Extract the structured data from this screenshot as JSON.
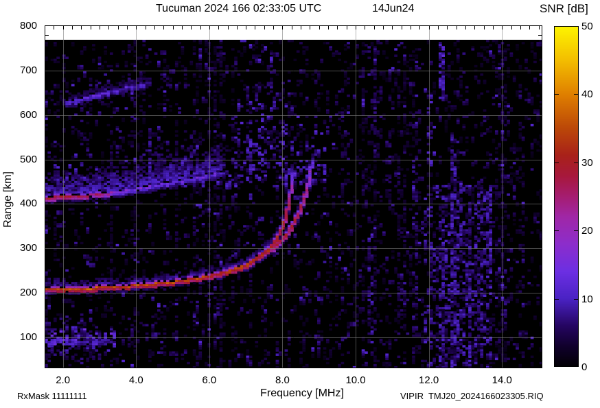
{
  "header": {
    "title": "Tucuman 2024 166 02:33:05 UTC",
    "date": "14Jun24"
  },
  "colorbar": {
    "title": "SNR [dB]",
    "min": 0,
    "max": 50,
    "tick_values": [
      0,
      10,
      20,
      30,
      40,
      50
    ],
    "tick_labels": [
      "0",
      "10",
      "20",
      "30",
      "40",
      "50"
    ]
  },
  "axes": {
    "x": {
      "label": "Frequency [MHz]",
      "values": [
        2,
        4,
        6,
        8,
        10,
        12,
        14
      ],
      "labels": [
        "2.0",
        "4.0",
        "6.0",
        "8.0",
        "10.0",
        "12.0",
        "14.0"
      ],
      "minor_step": 0.25,
      "range": [
        1.5,
        15.1
      ]
    },
    "y": {
      "label": "Range [km]",
      "values": [
        800,
        700,
        600,
        500,
        400,
        300,
        200,
        100
      ],
      "labels": [
        "800",
        "700",
        "600",
        "500",
        "400",
        "300",
        "200",
        "100"
      ],
      "range": [
        30,
        800
      ]
    }
  },
  "footer": {
    "left": "RxMask 11111111",
    "right": "VIPIR  TMJ20_2024166023305.RIQ"
  },
  "chart_data": {
    "type": "heatmap",
    "kind": "ionogram",
    "station": "Tucuman",
    "timestamp": "2024 166 02:33:05 UTC",
    "xlabel": "Frequency [MHz]",
    "ylabel": "Range [km]",
    "zlabel": "SNR [dB]",
    "x_range": [
      1.5,
      15.1
    ],
    "y_range": [
      30,
      800
    ],
    "z_range": [
      0,
      50
    ],
    "grid": {
      "x_major": [
        2,
        4,
        6,
        8,
        10,
        12,
        14
      ],
      "y_major": [
        100,
        200,
        300,
        400,
        500,
        600,
        700
      ]
    },
    "palette_stops": [
      [
        0.0,
        "#020004"
      ],
      [
        0.06,
        "#10002c"
      ],
      [
        0.12,
        "#250561"
      ],
      [
        0.2,
        "#4a22c4"
      ],
      [
        0.28,
        "#6c2fe2"
      ],
      [
        0.36,
        "#8c2dcb"
      ],
      [
        0.44,
        "#a027a6"
      ],
      [
        0.5,
        "#a51d70"
      ],
      [
        0.56,
        "#a7183c"
      ],
      [
        0.62,
        "#a8211a"
      ],
      [
        0.7,
        "#bb4708"
      ],
      [
        0.8,
        "#df7f00"
      ],
      [
        0.9,
        "#f3bd00"
      ],
      [
        1.0,
        "#fdf400"
      ]
    ],
    "traces": [
      {
        "name": "F-layer O-mode first hop",
        "halo_km": 14,
        "halo_db": 11,
        "points": [
          [
            1.5,
            206,
            30
          ],
          [
            2.0,
            207,
            33
          ],
          [
            2.6,
            209,
            33
          ],
          [
            3.2,
            212,
            32
          ],
          [
            3.8,
            215,
            31
          ],
          [
            4.4,
            219,
            32
          ],
          [
            5.0,
            224,
            31
          ],
          [
            5.5,
            230,
            31
          ],
          [
            6.0,
            237,
            31
          ],
          [
            6.5,
            247,
            30
          ],
          [
            7.0,
            261,
            30
          ],
          [
            7.3,
            275,
            29
          ],
          [
            7.6,
            295,
            29
          ],
          [
            7.85,
            320,
            28
          ],
          [
            8.0,
            348,
            27
          ],
          [
            8.1,
            375,
            26
          ],
          [
            8.18,
            405,
            23
          ],
          [
            8.24,
            432,
            18
          ],
          [
            8.28,
            455,
            14
          ],
          [
            8.31,
            472,
            12
          ]
        ]
      },
      {
        "name": "F-layer X-mode first hop",
        "halo_km": 10,
        "halo_db": 9,
        "points": [
          [
            7.35,
            279,
            22
          ],
          [
            7.6,
            291,
            23
          ],
          [
            7.85,
            308,
            25
          ],
          [
            8.1,
            330,
            25
          ],
          [
            8.3,
            355,
            25
          ],
          [
            8.45,
            380,
            24
          ],
          [
            8.57,
            405,
            22
          ],
          [
            8.66,
            430,
            20
          ],
          [
            8.73,
            455,
            16
          ],
          [
            8.78,
            478,
            13
          ],
          [
            8.81,
            495,
            11
          ]
        ]
      },
      {
        "name": "Second hop echo",
        "halo_km": 55,
        "halo_db": 12,
        "points": [
          [
            1.5,
            413,
            26
          ],
          [
            2.0,
            415,
            27
          ],
          [
            2.5,
            417,
            25
          ],
          [
            3.0,
            421,
            22
          ],
          [
            3.4,
            425,
            16
          ],
          [
            3.8,
            430,
            13
          ],
          [
            4.2,
            436,
            12
          ],
          [
            4.7,
            443,
            11
          ],
          [
            5.2,
            450,
            10
          ],
          [
            5.7,
            458,
            10
          ],
          [
            6.1,
            465,
            9
          ],
          [
            6.4,
            471,
            9
          ]
        ]
      },
      {
        "name": "Upper faint echo",
        "halo_km": 8,
        "halo_db": 6,
        "points": [
          [
            2.1,
            627,
            8
          ],
          [
            2.6,
            638,
            9
          ],
          [
            3.1,
            648,
            9
          ],
          [
            3.6,
            658,
            8
          ],
          [
            4.1,
            667,
            8
          ],
          [
            4.4,
            672,
            7
          ]
        ]
      }
    ],
    "clouds_format": "f:[MHz,MHz], r:[km,km], density 0-1, db:[min,max], fade",
    "clouds": [
      {
        "f": [
          1.5,
          3.4
        ],
        "r": [
          85,
          122
        ],
        "density": 0.6,
        "db": [
          5,
          15
        ],
        "fade": "up"
      },
      {
        "f": [
          1.5,
          4.6
        ],
        "r": [
          95,
          140
        ],
        "density": 0.22,
        "db": [
          3,
          9
        ],
        "fade": "up"
      },
      {
        "f": [
          1.5,
          3.0
        ],
        "r": [
          70,
          95
        ],
        "density": 0.3,
        "db": [
          4,
          10
        ],
        "fade": "none"
      },
      {
        "f": [
          1.5,
          3.1
        ],
        "r": [
          32,
          70
        ],
        "density": 0.15,
        "db": [
          3,
          8
        ],
        "fade": "none"
      },
      {
        "f": [
          1.5,
          2.6
        ],
        "r": [
          118,
          180
        ],
        "density": 0.12,
        "db": [
          3,
          8
        ],
        "fade": "up"
      },
      {
        "f": [
          1.8,
          4.6
        ],
        "r": [
          428,
          498
        ],
        "density": 0.26,
        "db": [
          4,
          11
        ],
        "fade": "up"
      },
      {
        "f": [
          4.6,
          6.8
        ],
        "r": [
          442,
          512
        ],
        "density": 0.2,
        "db": [
          4,
          11
        ],
        "fade": "up"
      },
      {
        "f": [
          6.7,
          8.1
        ],
        "r": [
          452,
          640
        ],
        "density": 0.26,
        "db": [
          4,
          12
        ],
        "fade": "up"
      },
      {
        "f": [
          8.0,
          9.15
        ],
        "r": [
          448,
          565
        ],
        "density": 0.26,
        "db": [
          4,
          12
        ],
        "fade": "up"
      },
      {
        "f": [
          7.3,
          8.6
        ],
        "r": [
          615,
          700
        ],
        "density": 0.1,
        "db": [
          3,
          9
        ],
        "fade": "up"
      },
      {
        "f": [
          2.0,
          4.4
        ],
        "r": [
          600,
          680
        ],
        "density": 0.07,
        "db": [
          3,
          8
        ],
        "fade": "none"
      },
      {
        "f": [
          3.3,
          5.7
        ],
        "r": [
          480,
          575
        ],
        "density": 0.09,
        "db": [
          3,
          9
        ],
        "fade": "none"
      },
      {
        "f": [
          11.9,
          13.7
        ],
        "r": [
          30,
          440
        ],
        "density": 0.28,
        "db": [
          3,
          11
        ],
        "fade": "none"
      }
    ],
    "noise_columns_format": "[f MHz, r_min km, r_max km, density, db_min, db_max, width_cells]",
    "noise_columns": [
      [
        9.0,
        60,
        200,
        0.15,
        3,
        8,
        1
      ],
      [
        9.6,
        320,
        520,
        0.12,
        3,
        8,
        1
      ],
      [
        10.35,
        90,
        320,
        0.3,
        3,
        10,
        2
      ],
      [
        10.55,
        560,
        760,
        0.18,
        3,
        8,
        1
      ],
      [
        10.95,
        380,
        720,
        0.15,
        3,
        8,
        1
      ],
      [
        11.2,
        100,
        300,
        0.15,
        3,
        8,
        1
      ],
      [
        11.55,
        40,
        540,
        0.25,
        3,
        9,
        2
      ],
      [
        12.02,
        490,
        645,
        0.35,
        4,
        11,
        2
      ],
      [
        12.3,
        640,
        762,
        0.45,
        5,
        13,
        2
      ],
      [
        12.3,
        30,
        400,
        0.3,
        3,
        10,
        2
      ],
      [
        12.62,
        30,
        560,
        0.38,
        3,
        11,
        2
      ],
      [
        12.85,
        30,
        420,
        0.3,
        3,
        10,
        1
      ],
      [
        13.1,
        60,
        450,
        0.3,
        3,
        10,
        1
      ],
      [
        13.35,
        60,
        460,
        0.28,
        3,
        9,
        2
      ],
      [
        13.58,
        255,
        435,
        0.45,
        4,
        12,
        2
      ],
      [
        14.05,
        80,
        260,
        0.15,
        3,
        8,
        1
      ],
      [
        14.3,
        415,
        490,
        0.4,
        5,
        11,
        1
      ],
      [
        14.6,
        200,
        420,
        0.15,
        3,
        8,
        1
      ],
      [
        4.35,
        430,
        565,
        0.25,
        4,
        10,
        1
      ],
      [
        5.5,
        455,
        555,
        0.18,
        4,
        9,
        1
      ],
      [
        3.6,
        480,
        560,
        0.15,
        3,
        9,
        1
      ]
    ],
    "background_noise": {
      "density_min": 0.035,
      "density_rand": 0.075,
      "boost_prob": 0.18,
      "val_base": 2,
      "val_scale": 2.3,
      "val_max": 11,
      "highband_f": 9.3,
      "highband_mult": 1.25,
      "blob_count": 160
    }
  }
}
